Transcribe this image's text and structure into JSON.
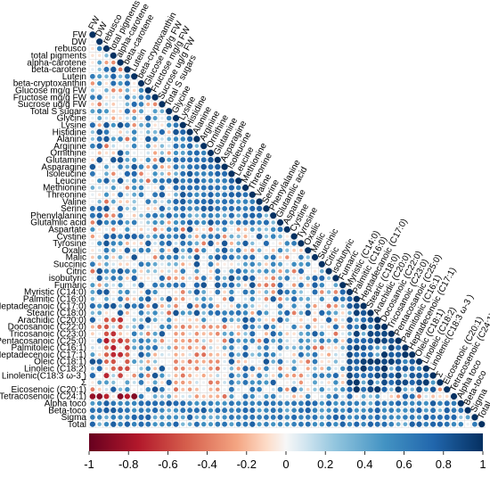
{
  "chart_data": {
    "type": "heatmap",
    "layout": "lower-triangle correlation matrix with circle markers",
    "variables": [
      "FW",
      "DW",
      "rebusco",
      "total pigments",
      "alpha-carotene",
      "beta-carotene",
      "Lutein",
      "beta-cryptoxanthin",
      "Glucose mg/g FW",
      "Fructose mg/g FW",
      "Sucrose ug/g FW",
      "Total S sugars",
      "Glycine",
      "Lysine",
      "Histidine",
      "Alanine",
      "Arginine",
      "Ornithine",
      "Glutamine",
      "Asparagine",
      "Isoleucine",
      "Leucine",
      "Methionine",
      "Threonine",
      "Valine",
      "Serine",
      "Phenylalanine",
      "Glutamlic acid",
      "Aspartate",
      "Cystine",
      "Tyrosine",
      "Oxalic",
      "Malic",
      "Succinic",
      "Citric",
      "isobutyric",
      "Fumaric",
      "Myristic (C14:0)",
      "Palmitic (C16:0)",
      "Heptadecanoic (C17:0)",
      "Stearic (C18:0)",
      "Arachidic (C20:0)",
      "Docosanoic (C22:0)",
      "Tricosanoic (C23:0)",
      "Pentacosanoic (C25:0)",
      "Palmitoleic (C16:1)",
      "Heptadecenoic (C17:1)",
      "Oleic (C18:1)",
      "Linoleic (C18:2)",
      "Linolenic(C18:3 ω-3 )",
      "Σ",
      "Eicosenoic (C20:1)",
      "Tetracosenoic (C24:1)",
      "Alpha toco",
      "Beta-toco",
      "Sigma",
      "Total"
    ],
    "scale": {
      "min": -1,
      "max": 1,
      "ticks": [
        "-1",
        "-0.8",
        "-0.6",
        "-0.4",
        "-0.2",
        "0",
        "0.2",
        "0.4",
        "0.6",
        "0.8",
        "1"
      ]
    },
    "colors": {
      "negative": "#67001f",
      "neutral": "#f7f7f7",
      "positive": "#053061"
    },
    "strong_negative_blocks": [
      {
        "rows": [
          "Arachidic (C20:0)",
          "Linolenic(C18:3 ω-3 )"
        ],
        "cols": [
          "rebusco",
          "beta-carotene"
        ],
        "value": -0.6
      },
      {
        "rows": [
          "Tetracosenoic (C24:1)"
        ],
        "cols": [
          "FW",
          "Lutein"
        ],
        "value": -0.85
      },
      {
        "rows": [
          "Docosanoic (C22:0)",
          "Tetracosenoic (C24:1)"
        ],
        "cols": [
          "Glycine",
          "Glutamine"
        ],
        "value": -0.3
      }
    ],
    "strong_positive_blocks": [
      {
        "rows": [
          "Myristic (C14:0)",
          "Eicosenoic (C20:1)"
        ],
        "cols": [
          "Myristic (C14:0)",
          "Linolenic(C18:3 ω-3 )"
        ],
        "value": 0.85
      },
      {
        "rows": [
          "Alpha toco",
          "Total"
        ],
        "cols": [
          "FW",
          "Tetracosenoic (C24:1)"
        ],
        "value": 0.65
      },
      {
        "rows": [
          "Glycine",
          "Glutamlic acid"
        ],
        "cols": [
          "Glycine",
          "Phenylalanine"
        ],
        "value": 0.7
      }
    ]
  }
}
